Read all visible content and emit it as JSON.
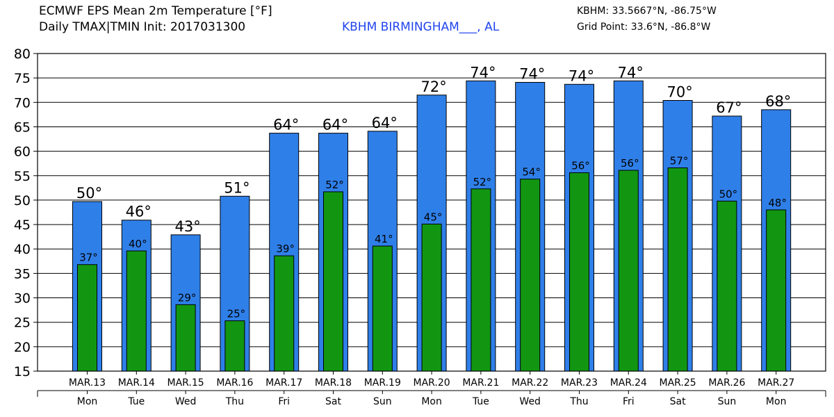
{
  "header": {
    "title_line1": "ECMWF EPS Mean 2m Temperature [°F]",
    "title_line2": "Daily TMAX|TMIN Init: 2017031300",
    "station_label": "KBHM BIRMINGHAM___, AL",
    "coords_line1": "KBHM: 33.5667°N, -86.75°W",
    "coords_line2": "Grid Point: 33.6°N, -86.8°W"
  },
  "chart_data": {
    "type": "bar",
    "categories": [
      "MAR.13",
      "MAR.14",
      "MAR.15",
      "MAR.16",
      "MAR.17",
      "MAR.18",
      "MAR.19",
      "MAR.20",
      "MAR.21",
      "MAR.22",
      "MAR.23",
      "MAR.24",
      "MAR.25",
      "MAR.26",
      "MAR.27"
    ],
    "weekdays": [
      "Mon",
      "Tue",
      "Wed",
      "Thu",
      "Fri",
      "Sat",
      "Sun",
      "Mon",
      "Tue",
      "Wed",
      "Thu",
      "Fri",
      "Sat",
      "Sun",
      "Mon"
    ],
    "series": [
      {
        "key": "tmax",
        "color": "#2f7fe8",
        "values": [
          49.7,
          45.9,
          42.9,
          50.8,
          63.7,
          63.7,
          64.1,
          71.5,
          74.4,
          74.1,
          73.7,
          74.4,
          70.4,
          67.2,
          68.5
        ],
        "labels": [
          "50°",
          "46°",
          "43°",
          "51°",
          "64°",
          "64°",
          "64°",
          "72°",
          "74°",
          "74°",
          "74°",
          "74°",
          "70°",
          "67°",
          "68°"
        ]
      },
      {
        "key": "tmin",
        "color": "#129612",
        "values": [
          36.8,
          39.6,
          28.6,
          25.3,
          38.6,
          51.7,
          40.6,
          45.1,
          52.3,
          54.3,
          55.6,
          56.1,
          56.6,
          49.8,
          48.0
        ],
        "labels": [
          "37°",
          "40°",
          "29°",
          "25°",
          "39°",
          "52°",
          "41°",
          "45°",
          "52°",
          "54°",
          "56°",
          "56°",
          "57°",
          "50°",
          "48°"
        ]
      }
    ],
    "ylim": [
      15,
      80
    ],
    "yticks": [
      "15",
      "20",
      "25",
      "30",
      "35",
      "40",
      "45",
      "50",
      "55",
      "60",
      "65",
      "70",
      "75",
      "80"
    ],
    "grid": true
  }
}
